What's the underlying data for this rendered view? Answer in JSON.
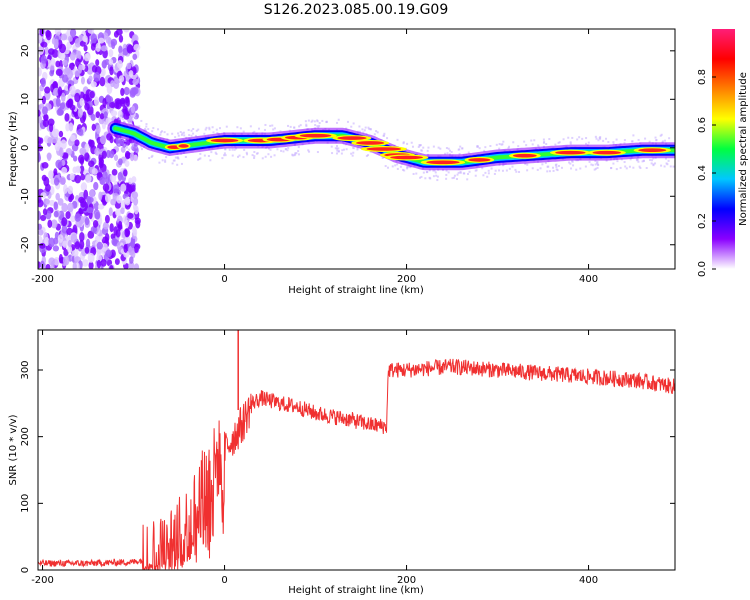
{
  "title": "S126.2023.085.00.19.G09",
  "chart_data": [
    {
      "type": "heatmap",
      "xlabel": "Height of straight line (km)",
      "ylabel": "Frequency (Hz)",
      "xlim": [
        -205,
        495
      ],
      "ylim": [
        -25,
        24.5
      ],
      "xticks": [
        -200,
        0,
        200,
        400
      ],
      "yticks": [
        -20,
        -10,
        0,
        10,
        20
      ],
      "colorbar": {
        "label": "Normalized spectral amplitude",
        "range": [
          0,
          1
        ],
        "ticks": [
          "0.0",
          "0.2",
          "0.4",
          "0.6",
          "0.8"
        ],
        "colors": [
          "#ffffff",
          "#8a00ff",
          "#0000ff",
          "#00c8ff",
          "#00ff40",
          "#ffff00",
          "#ff8000",
          "#ff0000",
          "#ff1e78"
        ]
      },
      "ridge": {
        "x": [
          -120,
          -100,
          -80,
          -60,
          -40,
          -20,
          0,
          20,
          50,
          100,
          130,
          160,
          190,
          220,
          260,
          300,
          340,
          380,
          420,
          460,
          495
        ],
        "y": [
          4,
          3,
          1,
          0,
          0.5,
          1,
          1.5,
          1.5,
          1.5,
          2.5,
          2.5,
          1,
          -1.5,
          -3,
          -3,
          -2,
          -1.5,
          -1,
          -1,
          -0.5,
          -0.5
        ]
      },
      "noise_region": {
        "x_from": -205,
        "x_to": -95,
        "y_from": -25,
        "y_to": 24.5
      }
    },
    {
      "type": "line",
      "xlabel": "Height of straight line (km)",
      "ylabel": "SNR (10 * v/v)",
      "xlim": [
        -205,
        495
      ],
      "ylim": [
        0,
        360
      ],
      "xticks": [
        -200,
        0,
        200,
        400
      ],
      "yticks": [
        0,
        100,
        200,
        300
      ],
      "color": "#f03030",
      "trend": {
        "x": [
          -205,
          -150,
          -100,
          -80,
          -60,
          -40,
          -20,
          0,
          10,
          20,
          30,
          40,
          60,
          80,
          100,
          120,
          140,
          160,
          178,
          180,
          200,
          250,
          300,
          350,
          400,
          450,
          495
        ],
        "y": [
          10,
          10,
          12,
          18,
          30,
          70,
          140,
          180,
          200,
          220,
          250,
          258,
          250,
          245,
          235,
          230,
          225,
          218,
          215,
          300,
          300,
          305,
          300,
          295,
          290,
          285,
          275
        ]
      },
      "peaks": [
        {
          "x": 15,
          "y": 360
        }
      ]
    }
  ]
}
